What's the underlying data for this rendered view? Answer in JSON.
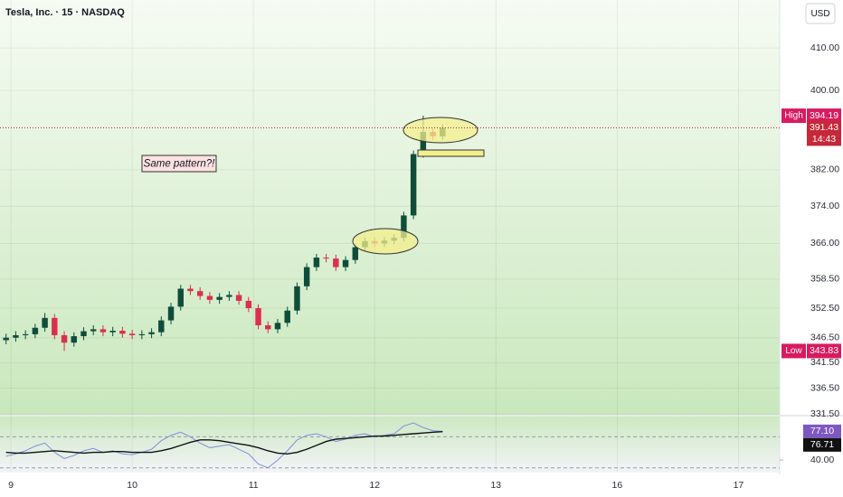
{
  "header": {
    "symbol": "Tesla, Inc. · 15 · NASDAQ",
    "currency": "USD"
  },
  "chart_data": {
    "type": "candlestick",
    "annotation": "Same pattern?!",
    "x": [
      -0.04,
      0.04,
      0.12,
      0.2,
      0.28,
      0.36,
      0.44,
      0.52,
      0.6,
      0.68,
      0.76,
      0.84,
      0.92,
      1.0,
      1.08,
      1.16,
      1.24,
      1.32,
      1.4,
      1.48,
      1.56,
      1.64,
      1.72,
      1.8,
      1.88,
      1.96,
      2.04,
      2.12,
      2.2,
      2.28,
      2.36,
      2.44,
      2.52,
      2.6,
      2.68,
      2.76,
      2.84,
      2.92,
      3.0,
      3.08,
      3.16,
      3.24,
      3.32,
      3.4,
      3.48,
      3.56
    ],
    "open": [
      346.0,
      346.5,
      347.0,
      347.2,
      348.5,
      350.5,
      347.0,
      345.5,
      346.8,
      347.8,
      348.2,
      347.6,
      347.9,
      347.3,
      347.0,
      347.2,
      347.6,
      350.0,
      352.8,
      356.5,
      356.0,
      355.0,
      354.2,
      354.8,
      355.2,
      354.0,
      352.5,
      349.0,
      348.2,
      349.5,
      352.0,
      357.0,
      361.0,
      363.0,
      362.8,
      361.0,
      362.5,
      365.2,
      366.5,
      366.0,
      366.6,
      367.2,
      372.0,
      385.5,
      390.5,
      389.5
    ],
    "high": [
      347.3,
      347.8,
      348.0,
      349.3,
      351.5,
      351.3,
      347.8,
      347.6,
      348.6,
      349.0,
      349.0,
      348.7,
      348.7,
      348.1,
      348.0,
      348.4,
      350.8,
      353.6,
      357.3,
      357.3,
      356.8,
      355.8,
      355.6,
      356.0,
      356.0,
      354.8,
      353.3,
      349.8,
      350.3,
      352.8,
      357.8,
      361.8,
      363.8,
      363.8,
      363.6,
      363.3,
      366.0,
      367.3,
      367.3,
      367.4,
      368.0,
      372.8,
      386.3,
      394.19,
      391.3,
      392.2
    ],
    "low": [
      345.2,
      345.7,
      346.2,
      346.4,
      347.7,
      346.2,
      343.83,
      344.7,
      346.0,
      347.0,
      346.8,
      346.8,
      346.5,
      346.2,
      346.2,
      346.4,
      346.8,
      349.2,
      352.0,
      355.2,
      354.2,
      353.4,
      353.4,
      354.0,
      353.2,
      351.7,
      348.2,
      347.4,
      347.4,
      348.7,
      351.2,
      356.2,
      360.2,
      362.0,
      360.2,
      360.2,
      361.7,
      364.4,
      365.2,
      365.2,
      365.8,
      366.4,
      371.2,
      384.7,
      388.7,
      388.7
    ],
    "close": [
      346.5,
      347.0,
      347.2,
      348.5,
      350.5,
      347.0,
      345.5,
      346.8,
      347.8,
      348.2,
      347.6,
      347.9,
      347.3,
      347.0,
      347.2,
      347.6,
      350.0,
      352.8,
      356.5,
      356.0,
      355.0,
      354.2,
      354.8,
      355.2,
      354.0,
      352.5,
      349.0,
      348.2,
      349.5,
      352.0,
      357.0,
      361.0,
      363.0,
      362.8,
      361.0,
      362.5,
      365.2,
      366.5,
      366.0,
      366.6,
      367.2,
      372.0,
      385.5,
      390.5,
      389.5,
      391.43
    ],
    "up_color": "#0f4d3a",
    "down_color": "#d9304f",
    "xlim": [
      -0.09,
      6.34
    ],
    "xticks": [
      {
        "value": 0,
        "label": "9"
      },
      {
        "value": 1,
        "label": "10"
      },
      {
        "value": 2,
        "label": "11"
      },
      {
        "value": 3,
        "label": "12"
      },
      {
        "value": 4,
        "label": "13"
      },
      {
        "value": 5,
        "label": "16"
      },
      {
        "value": 6,
        "label": "17"
      }
    ],
    "ylim": [
      331.5,
      421.6
    ],
    "log_scale": true,
    "yticks": [
      {
        "value": 410,
        "label": "410.00"
      },
      {
        "value": 400,
        "label": "400.00"
      },
      {
        "value": 382,
        "label": "382.00"
      },
      {
        "value": 374,
        "label": "374.00"
      },
      {
        "value": 366,
        "label": "366.00"
      },
      {
        "value": 358.5,
        "label": "358.50"
      },
      {
        "value": 352.5,
        "label": "352.50"
      },
      {
        "value": 346.5,
        "label": "346.50"
      },
      {
        "value": 341.5,
        "label": "341.50"
      },
      {
        "value": 336.5,
        "label": "336.50"
      },
      {
        "value": 331.5,
        "label": "331.50"
      }
    ],
    "grid": true,
    "high_marker": {
      "label": "High",
      "value": 394.19
    },
    "low_marker": {
      "label": "Low",
      "value": 343.83
    },
    "last_price": 391.43,
    "countdown": "14:43",
    "indicator": {
      "ylim": [
        25,
        95
      ],
      "yticks": [
        {
          "value": 40,
          "label": "40.00"
        }
      ],
      "levels": [
        70,
        30
      ],
      "series": [
        {
          "color": "#7f8fe0",
          "values": [
            45,
            48,
            52,
            58,
            62,
            50,
            42,
            46,
            52,
            55,
            50,
            52,
            48,
            47,
            50,
            54,
            65,
            72,
            76,
            70,
            62,
            56,
            58,
            60,
            54,
            48,
            35,
            30,
            40,
            52,
            66,
            72,
            74,
            70,
            64,
            67,
            72,
            74,
            70,
            72,
            74,
            84,
            88,
            82,
            78,
            77.1
          ],
          "last": {
            "value": 77.1,
            "label": "77.10"
          },
          "label_color": "#7e57c2"
        },
        {
          "color": "#111111",
          "values": [
            50,
            49,
            49,
            50,
            51,
            52,
            51,
            50,
            49,
            50,
            50,
            51,
            51,
            50,
            50,
            50,
            52,
            55,
            59,
            63,
            66,
            66,
            65,
            63,
            61,
            59,
            56,
            52,
            49,
            48,
            50,
            54,
            59,
            64,
            67,
            68,
            69,
            70,
            71,
            71,
            72,
            73,
            74,
            75,
            76,
            76.71
          ],
          "last": 76.71,
          "label_color": "#111111"
        }
      ]
    }
  }
}
